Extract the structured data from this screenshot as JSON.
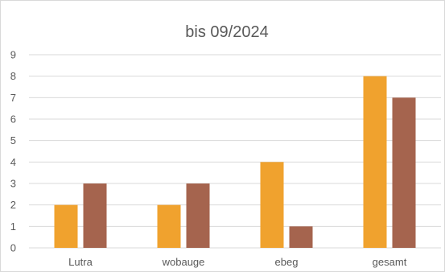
{
  "chart_data": {
    "type": "bar",
    "title": "bis 09/2024",
    "categories": [
      "Lutra",
      "wobauge",
      "ebeg",
      "gesamt"
    ],
    "series": [
      {
        "values": [
          2,
          2,
          4,
          8
        ],
        "color": "#f0a22e"
      },
      {
        "values": [
          3,
          3,
          1,
          7
        ],
        "color": "#a5644e"
      }
    ],
    "xlabel": "",
    "ylabel": "",
    "ylim": [
      0,
      9
    ],
    "yticks": [
      0,
      1,
      2,
      3,
      4,
      5,
      6,
      7,
      8,
      9
    ],
    "grid": true,
    "legend": "none"
  }
}
